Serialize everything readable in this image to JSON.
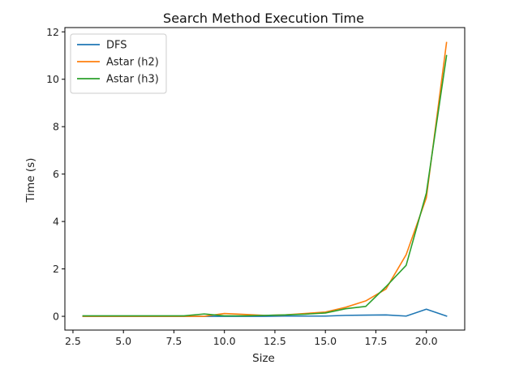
{
  "chart_data": {
    "type": "line",
    "title": "Search Method Execution Time",
    "xlabel": "Size",
    "ylabel": "Time (s)",
    "xlim": [
      2.1,
      21.9
    ],
    "ylim": [
      -0.58,
      12.18
    ],
    "xticks": [
      2.5,
      5.0,
      7.5,
      10.0,
      12.5,
      15.0,
      17.5,
      20.0
    ],
    "xtick_labels": [
      "2.5",
      "5.0",
      "7.5",
      "10.0",
      "12.5",
      "15.0",
      "17.5",
      "20.0"
    ],
    "yticks": [
      0,
      2,
      4,
      6,
      8,
      10,
      12
    ],
    "ytick_labels": [
      "0",
      "2",
      "4",
      "6",
      "8",
      "10",
      "12"
    ],
    "grid": false,
    "legend_position": "top-left",
    "x": [
      3,
      4,
      5,
      6,
      7,
      8,
      9,
      10,
      11,
      12,
      13,
      14,
      15,
      16,
      17,
      18,
      19,
      20,
      21
    ],
    "series": [
      {
        "name": "DFS",
        "color": "#1f77b4",
        "values": [
          0.0,
          0.0,
          0.0,
          0.0,
          0.0,
          0.0,
          0.0,
          0.0,
          0.0,
          0.0,
          0.01,
          0.01,
          0.01,
          0.04,
          0.05,
          0.06,
          0.01,
          0.3,
          0.01
        ]
      },
      {
        "name": "Astar (h2)",
        "color": "#ff7f0e",
        "values": [
          0.0,
          0.0,
          0.0,
          0.0,
          0.0,
          0.0,
          0.0,
          0.12,
          0.08,
          0.04,
          0.06,
          0.12,
          0.18,
          0.38,
          0.65,
          1.15,
          2.6,
          5.0,
          11.55
        ]
      },
      {
        "name": "Astar (h3)",
        "color": "#2ca02c",
        "values": [
          0.02,
          0.02,
          0.02,
          0.02,
          0.02,
          0.02,
          0.1,
          0.02,
          0.02,
          0.04,
          0.06,
          0.09,
          0.14,
          0.32,
          0.42,
          1.25,
          2.15,
          5.2,
          11.0
        ]
      }
    ]
  }
}
